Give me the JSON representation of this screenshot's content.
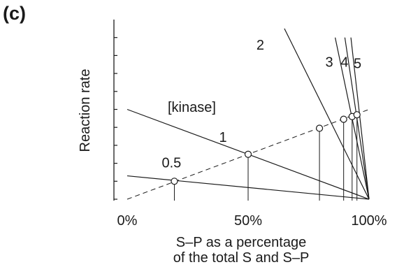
{
  "panel_label": "(c)",
  "chart_data": {
    "type": "line",
    "xlabel_lines": [
      "S–P as a percentage",
      "of the total S and S–P"
    ],
    "ylabel": "Reaction rate",
    "xlim": [
      0,
      100
    ],
    "ylim": [
      0,
      10
    ],
    "x_tick_labels": [
      {
        "value": 0,
        "label": "0%"
      },
      {
        "value": 50,
        "label": "50%"
      },
      {
        "value": 100,
        "label": "100%"
      }
    ],
    "y_ticks": [
      0,
      1,
      2,
      3,
      4,
      5,
      6,
      7,
      8,
      9
    ],
    "grid": false,
    "annotation": "[kinase]",
    "dashed_line": {
      "from": [
        0,
        0
      ],
      "to": [
        100,
        5
      ]
    },
    "series": [
      {
        "name": "0.5",
        "values": [
          [
            0,
            1.3
          ],
          [
            100,
            0
          ]
        ],
        "equilibrium": [
          19.5,
          1.0
        ]
      },
      {
        "name": "1",
        "values": [
          [
            0,
            5.0
          ],
          [
            100,
            0
          ]
        ],
        "equilibrium": [
          50,
          2.5
        ]
      },
      {
        "name": "2",
        "values": [
          [
            65,
            9.5
          ],
          [
            100,
            0
          ]
        ],
        "equilibrium": [
          79.5,
          3.95
        ]
      },
      {
        "name": "3",
        "values": [
          [
            86,
            9.0
          ],
          [
            100,
            0
          ]
        ],
        "equilibrium": [
          89.5,
          4.45
        ]
      },
      {
        "name": "4",
        "values": [
          [
            90,
            9.0
          ],
          [
            100,
            0
          ]
        ],
        "equilibrium": [
          93,
          4.6
        ]
      },
      {
        "name": "5",
        "values": [
          [
            92.5,
            9.0
          ],
          [
            100,
            0
          ]
        ],
        "equilibrium": [
          95,
          4.7
        ]
      }
    ]
  }
}
